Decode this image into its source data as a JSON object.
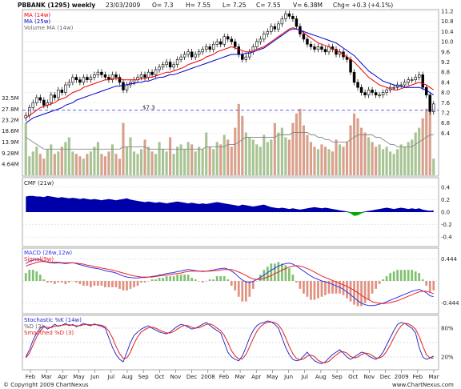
{
  "header": {
    "symbol": "PBBANK (1295) weekly",
    "date": "23/03/2009",
    "open": "O= 7.3",
    "high": "H= 7.55",
    "low": "L= 7.25",
    "close": "C= 7.55",
    "volume": "V= 6.38M",
    "change": "Chg= +0.3 (+4.1%)"
  },
  "footer": {
    "left": "© Copyright 2009 ChartNexus",
    "right": "www.ChartNexus.com"
  },
  "colors": {
    "background": "#ffffff",
    "up_candle": "#ffffff",
    "down_candle": "#000000",
    "ma14": "#ee0000",
    "ma25": "#0000cc",
    "volume_up": "#a8c494",
    "volume_down": "#d9a08c",
    "volume_ma": "#888888",
    "cmf_fill": "#0000aa",
    "cmf_negative": "#00aa00",
    "macd_line": "#3333ee",
    "signal_line": "#ee2222",
    "hist_positive": "#80c070",
    "hist_negative": "#e09080",
    "stoch_k": "#2222cc",
    "stoch_d": "#888888",
    "stoch_smooth": "#dd2222",
    "support_line": "#3333cc"
  },
  "chart_data": [
    {
      "type": "candlestick",
      "legend": [
        "MA (14w)",
        "MA (25w)",
        "Volume MA (14w)"
      ],
      "ylim": [
        6.6,
        11.2
      ],
      "y_ticks": [
        "11.2",
        "10.8",
        "10.4",
        "10.0",
        "9.6",
        "9.2",
        "8.8",
        "8.4",
        "8.0",
        "7.6",
        "7.2",
        "6.8",
        "6.4"
      ],
      "volume_ticks": [
        "32.5M",
        "27.8M",
        "23.2M",
        "18.6M",
        "13.9M",
        "9.28M",
        "4.64M"
      ],
      "support_label": "$7.3",
      "support_value": 7.3,
      "x_labels": [
        "Feb",
        "Mar",
        "Apr",
        "May",
        "Jun",
        "Jul",
        "Aug",
        "Sep",
        "Oct",
        "Nov",
        "Dec",
        "2008",
        "Feb",
        "Mar",
        "Apr",
        "May",
        "Jun",
        "Jul",
        "Aug",
        "Sep",
        "Oct",
        "Nov",
        "Dec",
        "2009",
        "Feb",
        "Mar"
      ],
      "close": [
        7.1,
        7.4,
        7.6,
        7.8,
        7.7,
        7.5,
        7.6,
        7.9,
        7.8,
        8.1,
        8.0,
        8.3,
        8.4,
        8.6,
        8.5,
        8.4,
        8.6,
        8.5,
        8.6,
        8.7,
        8.8,
        8.7,
        8.6,
        8.5,
        8.7,
        8.6,
        8.4,
        8.1,
        8.3,
        8.4,
        8.5,
        8.6,
        8.7,
        8.6,
        8.8,
        8.7,
        8.9,
        9.0,
        9.1,
        9.2,
        9.0,
        9.1,
        9.3,
        9.4,
        9.5,
        9.6,
        9.4,
        9.5,
        9.6,
        9.7,
        9.8,
        9.7,
        9.9,
        10.0,
        9.9,
        10.2,
        10.1,
        10.0,
        9.8,
        9.5,
        9.3,
        9.4,
        9.6,
        9.8,
        10.0,
        10.1,
        10.3,
        10.4,
        10.6,
        10.5,
        10.7,
        10.9,
        11.1,
        11.0,
        10.9,
        10.6,
        10.3,
        10.1,
        9.9,
        9.8,
        9.7,
        9.8,
        9.7,
        9.6,
        9.8,
        9.7,
        9.5,
        9.6,
        9.4,
        9.3,
        8.8,
        8.4,
        8.2,
        8.0,
        7.9,
        8.1,
        8.0,
        7.9,
        7.9,
        8.0,
        8.1,
        8.2,
        8.2,
        8.3,
        8.3,
        8.4,
        8.5,
        8.5,
        8.6,
        8.7,
        8.2,
        7.9,
        7.25,
        7.55
      ],
      "ma14": [
        7.0,
        7.1,
        7.2,
        7.3,
        7.4,
        7.45,
        7.5,
        7.55,
        7.6,
        7.7,
        7.75,
        7.8,
        7.9,
        8.0,
        8.05,
        8.1,
        8.2,
        8.25,
        8.3,
        8.35,
        8.4,
        8.45,
        8.5,
        8.5,
        8.55,
        8.55,
        8.55,
        8.5,
        8.5,
        8.5,
        8.5,
        8.5,
        8.55,
        8.55,
        8.6,
        8.6,
        8.65,
        8.7,
        8.75,
        8.8,
        8.8,
        8.85,
        8.9,
        8.95,
        9.0,
        9.1,
        9.15,
        9.2,
        9.25,
        9.3,
        9.4,
        9.45,
        9.5,
        9.6,
        9.65,
        9.7,
        9.75,
        9.8,
        9.75,
        9.7,
        9.65,
        9.6,
        9.6,
        9.65,
        9.7,
        9.75,
        9.8,
        9.9,
        10.0,
        10.1,
        10.2,
        10.3,
        10.4,
        10.5,
        10.55,
        10.5,
        10.45,
        10.35,
        10.25,
        10.15,
        10.05,
        9.95,
        9.9,
        9.85,
        9.8,
        9.7,
        9.65,
        9.6,
        9.5,
        9.4,
        9.3,
        9.2,
        9.05,
        8.9,
        8.75,
        8.6,
        8.5,
        8.4,
        8.3,
        8.25,
        8.2,
        8.15,
        8.1,
        8.1,
        8.15,
        8.2,
        8.25,
        8.3,
        8.35,
        8.4,
        8.35,
        8.3,
        8.2,
        8.1
      ],
      "ma25": [
        6.8,
        6.9,
        7.0,
        7.05,
        7.1,
        7.15,
        7.2,
        7.25,
        7.3,
        7.35,
        7.4,
        7.5,
        7.55,
        7.6,
        7.7,
        7.75,
        7.8,
        7.85,
        7.9,
        7.95,
        8.0,
        8.05,
        8.1,
        8.15,
        8.2,
        8.25,
        8.25,
        8.3,
        8.3,
        8.35,
        8.35,
        8.4,
        8.4,
        8.45,
        8.45,
        8.5,
        8.55,
        8.6,
        8.6,
        8.65,
        8.7,
        8.7,
        8.75,
        8.8,
        8.85,
        8.9,
        8.95,
        9.0,
        9.05,
        9.1,
        9.15,
        9.2,
        9.25,
        9.3,
        9.35,
        9.4,
        9.45,
        9.5,
        9.5,
        9.5,
        9.5,
        9.55,
        9.55,
        9.6,
        9.65,
        9.7,
        9.75,
        9.85,
        9.95,
        10.05,
        10.15,
        10.25,
        10.35,
        10.45,
        10.5,
        10.5,
        10.45,
        10.4,
        10.35,
        10.3,
        10.25,
        10.2,
        10.15,
        10.1,
        10.05,
        10.0,
        9.95,
        9.85,
        9.75,
        9.65,
        9.55,
        9.45,
        9.3,
        9.15,
        9.0,
        8.85,
        8.75,
        8.65,
        8.55,
        8.45,
        8.4,
        8.35,
        8.3,
        8.25,
        8.25,
        8.2,
        8.2,
        8.2,
        8.2,
        8.2,
        8.15,
        8.1,
        8.0,
        7.9
      ],
      "volume_m": [
        22,
        8,
        10,
        12,
        9,
        7,
        11,
        13,
        9,
        10,
        12,
        14,
        16,
        10,
        9,
        8,
        7,
        9,
        10,
        12,
        14,
        9,
        8,
        10,
        13,
        9,
        7,
        22,
        12,
        16,
        10,
        9,
        11,
        15,
        12,
        10,
        9,
        14,
        11,
        10,
        16,
        9,
        12,
        13,
        11,
        14,
        13,
        10,
        12,
        11,
        18,
        12,
        11,
        14,
        13,
        17,
        15,
        12,
        20,
        30,
        25,
        18,
        16,
        15,
        13,
        12,
        17,
        14,
        15,
        22,
        18,
        20,
        16,
        15,
        22,
        26,
        28,
        21,
        17,
        14,
        12,
        11,
        13,
        12,
        11,
        10,
        15,
        13,
        12,
        14,
        21,
        26,
        24,
        20,
        18,
        16,
        14,
        12,
        13,
        11,
        12,
        10,
        9,
        11,
        13,
        12,
        14,
        15,
        18,
        20,
        24,
        28,
        30,
        7
      ],
      "volume_ma_m": [
        16,
        15,
        14,
        13,
        12,
        11,
        11,
        11,
        11,
        11,
        11,
        11,
        11,
        11,
        11,
        11,
        11,
        11,
        11,
        11,
        11,
        11,
        11,
        11,
        11,
        11,
        11,
        12,
        12,
        12,
        12,
        12,
        12,
        12,
        11,
        11,
        11,
        11,
        11,
        11,
        11,
        11,
        11,
        11,
        11,
        11,
        11,
        11,
        11,
        11,
        12,
        12,
        12,
        12,
        12,
        12,
        13,
        13,
        13,
        14,
        15,
        16,
        16,
        16,
        16,
        16,
        16,
        16,
        16,
        16,
        17,
        17,
        17,
        17,
        18,
        18,
        18,
        18,
        18,
        17,
        17,
        16,
        16,
        15,
        15,
        14,
        14,
        14,
        14,
        14,
        15,
        16,
        17,
        17,
        17,
        17,
        17,
        16,
        16,
        15,
        14,
        13,
        13,
        12,
        12,
        12,
        12,
        12,
        13,
        14,
        15,
        16,
        17,
        17
      ]
    },
    {
      "type": "area",
      "title": "CMF (21w)",
      "ylim": [
        -0.5,
        0.5
      ],
      "y_ticks": [
        "0.4",
        "0.2",
        "0.0",
        "-0.2",
        "-0.4"
      ],
      "values": [
        0.25,
        0.26,
        0.26,
        0.25,
        0.25,
        0.24,
        0.26,
        0.25,
        0.24,
        0.23,
        0.24,
        0.23,
        0.22,
        0.23,
        0.22,
        0.21,
        0.22,
        0.21,
        0.2,
        0.21,
        0.2,
        0.19,
        0.2,
        0.21,
        0.2,
        0.19,
        0.2,
        0.21,
        0.22,
        0.2,
        0.19,
        0.18,
        0.17,
        0.16,
        0.17,
        0.16,
        0.15,
        0.16,
        0.15,
        0.14,
        0.15,
        0.16,
        0.17,
        0.16,
        0.15,
        0.14,
        0.15,
        0.14,
        0.13,
        0.14,
        0.13,
        0.14,
        0.15,
        0.16,
        0.15,
        0.14,
        0.13,
        0.12,
        0.11,
        0.1,
        0.12,
        0.11,
        0.1,
        0.09,
        0.1,
        0.11,
        0.12,
        0.1,
        0.08,
        0.07,
        0.06,
        0.07,
        0.06,
        0.05,
        0.06,
        0.05,
        0.04,
        0.05,
        0.06,
        0.07,
        0.08,
        0.07,
        0.06,
        0.07,
        0.06,
        0.05,
        0.04,
        0.03,
        0.02,
        0.01,
        -0.02,
        -0.06,
        -0.05,
        -0.02,
        0.01,
        0.02,
        0.03,
        0.04,
        0.05,
        0.06,
        0.07,
        0.06,
        0.05,
        0.06,
        0.07,
        0.06,
        0.05,
        0.06,
        0.05,
        0.06,
        0.04,
        0.03,
        0.02,
        0.03
      ]
    },
    {
      "type": "macd",
      "title": "MACD (26w,12w)",
      "signal_title": "Signal(9w)",
      "y_ticks": [
        "0.444",
        "0",
        "-0.444"
      ],
      "ylim": [
        -0.6,
        0.6
      ],
      "macd": [
        0.35,
        0.4,
        0.42,
        0.44,
        0.43,
        0.4,
        0.38,
        0.37,
        0.36,
        0.37,
        0.36,
        0.35,
        0.36,
        0.37,
        0.35,
        0.33,
        0.31,
        0.29,
        0.27,
        0.26,
        0.25,
        0.23,
        0.21,
        0.19,
        0.18,
        0.16,
        0.13,
        0.1,
        0.08,
        0.07,
        0.06,
        0.06,
        0.07,
        0.07,
        0.08,
        0.09,
        0.1,
        0.12,
        0.13,
        0.15,
        0.16,
        0.17,
        0.19,
        0.2,
        0.22,
        0.23,
        0.22,
        0.21,
        0.2,
        0.19,
        0.2,
        0.21,
        0.22,
        0.24,
        0.25,
        0.26,
        0.24,
        0.2,
        0.15,
        0.08,
        0.02,
        -0.02,
        -0.03,
        -0.01,
        0.03,
        0.07,
        0.12,
        0.17,
        0.22,
        0.26,
        0.3,
        0.33,
        0.35,
        0.36,
        0.34,
        0.3,
        0.25,
        0.2,
        0.15,
        0.1,
        0.06,
        0.03,
        0.0,
        -0.02,
        -0.04,
        -0.07,
        -0.1,
        -0.13,
        -0.17,
        -0.22,
        -0.28,
        -0.34,
        -0.4,
        -0.45,
        -0.48,
        -0.5,
        -0.5,
        -0.49,
        -0.47,
        -0.45,
        -0.42,
        -0.39,
        -0.36,
        -0.33,
        -0.3,
        -0.27,
        -0.24,
        -0.21,
        -0.19,
        -0.17,
        -0.2,
        -0.24,
        -0.3,
        -0.32
      ],
      "signal": [
        0.3,
        0.33,
        0.35,
        0.38,
        0.39,
        0.39,
        0.39,
        0.38,
        0.38,
        0.38,
        0.37,
        0.37,
        0.37,
        0.37,
        0.36,
        0.35,
        0.34,
        0.32,
        0.31,
        0.29,
        0.28,
        0.26,
        0.25,
        0.23,
        0.22,
        0.2,
        0.18,
        0.16,
        0.14,
        0.12,
        0.1,
        0.09,
        0.08,
        0.08,
        0.08,
        0.08,
        0.09,
        0.1,
        0.11,
        0.12,
        0.13,
        0.14,
        0.15,
        0.16,
        0.18,
        0.19,
        0.2,
        0.2,
        0.2,
        0.2,
        0.2,
        0.2,
        0.21,
        0.21,
        0.22,
        0.23,
        0.23,
        0.23,
        0.21,
        0.18,
        0.15,
        0.11,
        0.07,
        0.04,
        0.03,
        0.03,
        0.05,
        0.08,
        0.11,
        0.15,
        0.18,
        0.22,
        0.25,
        0.28,
        0.3,
        0.31,
        0.3,
        0.28,
        0.25,
        0.22,
        0.18,
        0.14,
        0.1,
        0.07,
        0.04,
        0.01,
        -0.02,
        -0.05,
        -0.08,
        -0.11,
        -0.15,
        -0.19,
        -0.24,
        -0.29,
        -0.34,
        -0.38,
        -0.42,
        -0.44,
        -0.45,
        -0.46,
        -0.45,
        -0.44,
        -0.42,
        -0.4,
        -0.37,
        -0.34,
        -0.31,
        -0.28,
        -0.25,
        -0.22,
        -0.21,
        -0.21,
        -0.23,
        -0.26
      ]
    },
    {
      "type": "line",
      "title": "Stochastic %K (14w)",
      "d_title": "%D (3)",
      "smooth_title": "Smoothed %D (3)",
      "y_ticks": [
        "80%",
        "20%"
      ],
      "ylim": [
        0,
        100
      ],
      "k": [
        20,
        35,
        55,
        70,
        80,
        85,
        78,
        82,
        88,
        84,
        86,
        90,
        85,
        88,
        83,
        86,
        90,
        87,
        85,
        89,
        86,
        84,
        80,
        60,
        40,
        25,
        15,
        10,
        30,
        50,
        65,
        72,
        78,
        82,
        85,
        80,
        76,
        72,
        70,
        68,
        72,
        78,
        84,
        88,
        86,
        82,
        78,
        80,
        84,
        88,
        92,
        86,
        80,
        75,
        70,
        50,
        30,
        20,
        15,
        12,
        22,
        40,
        60,
        75,
        85,
        90,
        92,
        95,
        93,
        88,
        80,
        60,
        40,
        25,
        15,
        12,
        14,
        22,
        30,
        20,
        12,
        8,
        6,
        10,
        18,
        25,
        30,
        35,
        28,
        20,
        15,
        20,
        25,
        30,
        28,
        22,
        18,
        15,
        20,
        30,
        45,
        60,
        75,
        88,
        92,
        90,
        85,
        80,
        70,
        40,
        20,
        15,
        18,
        22
      ],
      "d": [
        18,
        28,
        45,
        62,
        75,
        82,
        82,
        81,
        84,
        85,
        86,
        87,
        87,
        86,
        85,
        85,
        87,
        88,
        87,
        87,
        87,
        86,
        83,
        74,
        60,
        42,
        27,
        17,
        18,
        30,
        48,
        62,
        72,
        77,
        81,
        82,
        80,
        76,
        73,
        70,
        70,
        73,
        78,
        83,
        86,
        85,
        82,
        80,
        81,
        84,
        88,
        89,
        86,
        80,
        75,
        65,
        50,
        33,
        22,
        16,
        16,
        25,
        41,
        58,
        73,
        83,
        89,
        92,
        93,
        92,
        87,
        76,
        60,
        42,
        27,
        17,
        14,
        16,
        22,
        24,
        21,
        13,
        9,
        8,
        11,
        18,
        24,
        30,
        31,
        28,
        21,
        18,
        20,
        25,
        28,
        27,
        23,
        18,
        18,
        22,
        32,
        45,
        60,
        74,
        85,
        90,
        89,
        85,
        78,
        63,
        43,
        25,
        18,
        18
      ]
    }
  ]
}
